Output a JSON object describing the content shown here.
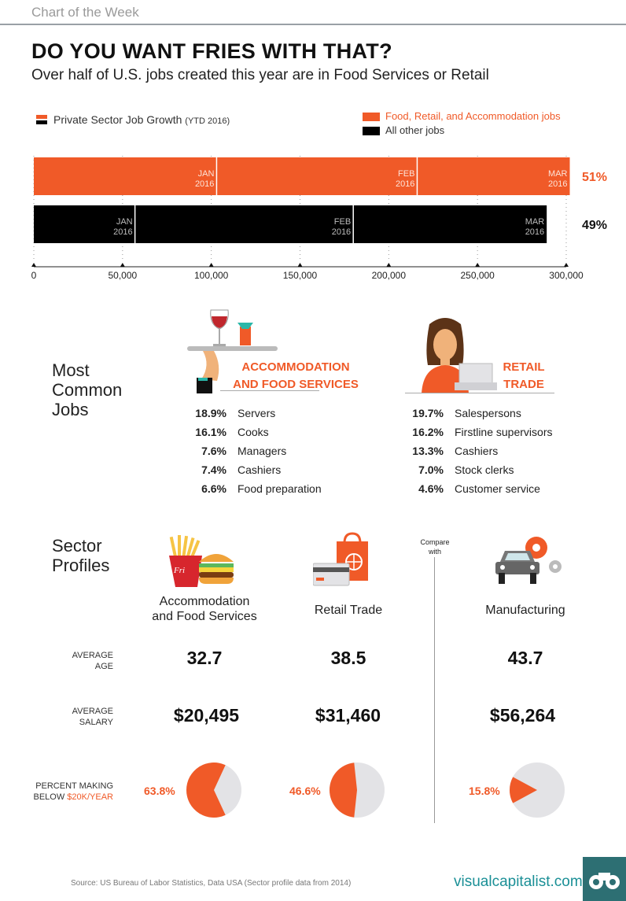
{
  "header": {
    "kicker": "Chart of the Week",
    "title": "DO YOU WANT FRIES WITH THAT?",
    "subtitle": "Over half of U.S. jobs created this year are in Food Services or Retail"
  },
  "legend": {
    "main_label": "Private Sector Job Growth",
    "main_sub": "(YTD 2016)",
    "items": [
      {
        "label": "Food, Retail, and Accommodation jobs",
        "color": "#f05a28"
      },
      {
        "label": "All other jobs",
        "color": "#000000"
      }
    ]
  },
  "chart_data": {
    "type": "bar",
    "title": "Private Sector Job Growth (YTD 2016)",
    "xlim": [
      0,
      300000
    ],
    "x_ticks": [
      "0",
      "50,000",
      "100,000",
      "150,000",
      "200,000",
      "250,000",
      "300,000"
    ],
    "x_tick_values": [
      0,
      50000,
      100000,
      150000,
      200000,
      250000,
      300000
    ],
    "series": [
      {
        "name": "Food, Retail, and Accommodation jobs",
        "color": "#f05a28",
        "share_label": "51%",
        "segments": [
          {
            "label": "JAN",
            "year": "2016",
            "end": 103000
          },
          {
            "label": "FEB",
            "year": "2016",
            "end": 216000
          },
          {
            "label": "MAR",
            "year": "2016",
            "end": 302000
          }
        ]
      },
      {
        "name": "All other jobs",
        "color": "#000000",
        "share_label": "49%",
        "segments": [
          {
            "label": "JAN",
            "year": "2016",
            "end": 57000
          },
          {
            "label": "FEB",
            "year": "2016",
            "end": 180000
          },
          {
            "label": "MAR",
            "year": "2016",
            "end": 289000
          }
        ]
      }
    ]
  },
  "jobs": {
    "heading_lines": [
      "Most",
      "Common",
      "Jobs"
    ],
    "food": {
      "title_lines": [
        "ACCOMMODATION",
        "AND FOOD SERVICES"
      ],
      "rows": [
        {
          "pct": "18.9%",
          "name": "Servers"
        },
        {
          "pct": "16.1%",
          "name": "Cooks"
        },
        {
          "pct": "7.6%",
          "name": "Managers"
        },
        {
          "pct": "7.4%",
          "name": "Cashiers"
        },
        {
          "pct": "6.6%",
          "name": "Food preparation"
        }
      ]
    },
    "retail": {
      "title_lines": [
        "RETAIL",
        "TRADE"
      ],
      "rows": [
        {
          "pct": "19.7%",
          "name": "Salespersons"
        },
        {
          "pct": "16.2%",
          "name": "Firstline supervisors"
        },
        {
          "pct": "13.3%",
          "name": "Cashiers"
        },
        {
          "pct": "7.0%",
          "name": "Stock clerks"
        },
        {
          "pct": "4.6%",
          "name": "Customer service"
        }
      ]
    }
  },
  "profiles": {
    "heading_lines": [
      "Sector",
      "Profiles"
    ],
    "compare_lines": [
      "Compare",
      "with"
    ],
    "row_labels": {
      "age": [
        "AVERAGE",
        "AGE"
      ],
      "salary": [
        "AVERAGE",
        "SALARY"
      ],
      "below_line1": "PERCENT MAKING",
      "below_prefix": "BELOW ",
      "below_highlight": "$20K/YEAR"
    },
    "sectors": [
      {
        "name_lines": [
          "Accommodation",
          "and Food Services"
        ],
        "age": "32.7",
        "salary": "$20,495",
        "below_pct_label": "63.8%",
        "below_pct": 63.8
      },
      {
        "name_lines": [
          "Retail Trade"
        ],
        "age": "38.5",
        "salary": "$31,460",
        "below_pct_label": "46.6%",
        "below_pct": 46.6
      },
      {
        "name_lines": [
          "Manufacturing"
        ],
        "age": "43.7",
        "salary": "$56,264",
        "below_pct_label": "15.8%",
        "below_pct": 15.8
      }
    ]
  },
  "footer": {
    "source": "Source: US Bureau of Labor Statistics, Data USA (Sector profile data from 2014)",
    "brand": "visualcapitalist.com"
  },
  "colors": {
    "accent": "#f05a28",
    "pie_gray": "#e3e3e6",
    "brand": "#1a8f96"
  },
  "icons": [
    "tray-with-drinks-icon",
    "woman-cashier-icon",
    "fries-and-burger-icon",
    "shopping-bag-and-card-icon",
    "car-and-gears-icon",
    "binoculars-logo-icon"
  ]
}
